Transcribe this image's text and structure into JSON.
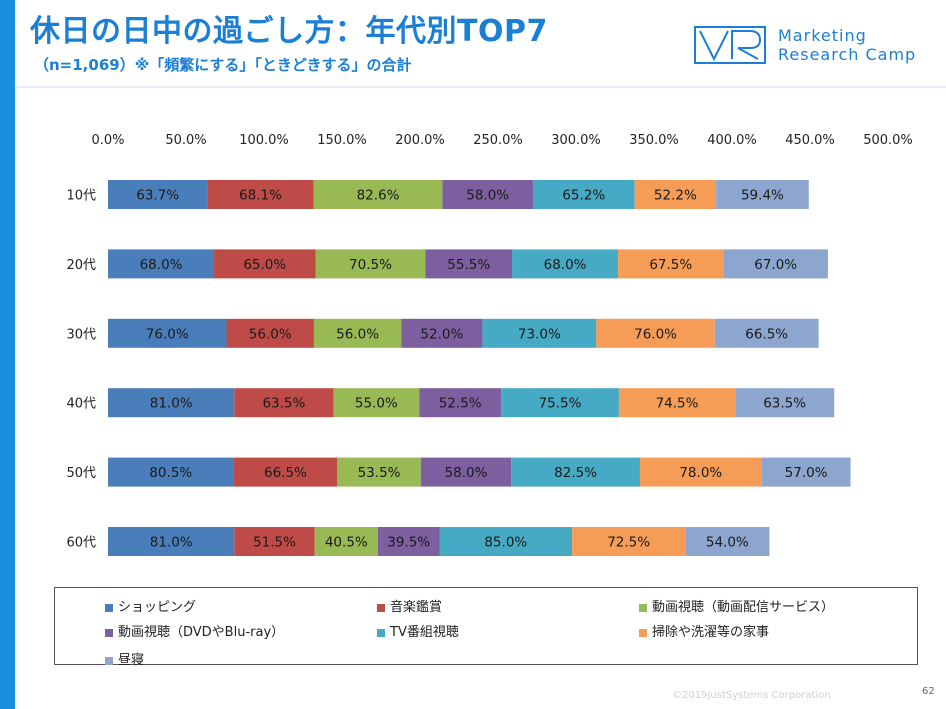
{
  "header": {
    "title": "休日の日中の過ごし方：年代別TOP7",
    "subtitle": "（n=1,069）※「頻繁にする」「ときどきする」の合計"
  },
  "logo": {
    "mark": "VR",
    "line1": "Marketing",
    "line2": "Research Camp"
  },
  "footer": {
    "copyright": "©2019JustSystems Corporation",
    "page": "62"
  },
  "colors": {
    "accent": "#1b7fd6",
    "series": [
      "#4a7ebb",
      "#be4b48",
      "#98b954",
      "#7d5fa0",
      "#46aac5",
      "#f59d56",
      "#8da6cf"
    ]
  },
  "chart_data": {
    "type": "bar",
    "orientation": "horizontal",
    "stacked": true,
    "categories": [
      "10代",
      "20代",
      "30代",
      "40代",
      "50代",
      "60代"
    ],
    "xlim": [
      0,
      500
    ],
    "xticks": [
      "0.0%",
      "50.0%",
      "100.0%",
      "150.0%",
      "200.0%",
      "250.0%",
      "300.0%",
      "350.0%",
      "400.0%",
      "450.0%",
      "500.0%"
    ],
    "grid": true,
    "legend_position": "bottom",
    "series": [
      {
        "name": "ショッピング",
        "values": [
          63.7,
          68.0,
          76.0,
          81.0,
          80.5,
          81.0
        ],
        "labels": [
          "63.7%",
          "68.0%",
          "76.0%",
          "81.0%",
          "80.5%",
          "81.0%"
        ]
      },
      {
        "name": "音楽鑑賞",
        "values": [
          68.1,
          65.0,
          56.0,
          63.5,
          66.5,
          51.5
        ],
        "labels": [
          "68.1%",
          "65.0%",
          "56.0%",
          "63.5%",
          "66.5%",
          "51.5%"
        ]
      },
      {
        "name": "動画視聴（動画配信サービス）",
        "values": [
          82.6,
          70.5,
          56.0,
          55.0,
          53.5,
          40.5
        ],
        "labels": [
          "82.6%",
          "70.5%",
          "56.0%",
          "55.0%",
          "53.5%",
          "40.5%"
        ]
      },
      {
        "name": "動画視聴（DVDやBlu-ray）",
        "values": [
          58.0,
          55.5,
          52.0,
          52.5,
          58.0,
          39.5
        ],
        "labels": [
          "58.0%",
          "55.5%",
          "52.0%",
          "52.5%",
          "58.0%",
          "39.5%"
        ]
      },
      {
        "name": "TV番組視聴",
        "values": [
          65.2,
          68.0,
          73.0,
          75.5,
          82.5,
          85.0
        ],
        "labels": [
          "65.2%",
          "68.0%",
          "73.0%",
          "75.5%",
          "82.5%",
          "85.0%"
        ]
      },
      {
        "name": "掃除や洗濯等の家事",
        "values": [
          52.2,
          67.5,
          76.0,
          74.5,
          78.0,
          72.5
        ],
        "labels": [
          "52.2%",
          "67.5%",
          "76.0%",
          "74.5%",
          "78.0%",
          "72.5%"
        ]
      },
      {
        "name": "昼寝",
        "values": [
          59.4,
          67.0,
          66.5,
          63.5,
          57.0,
          54.0
        ],
        "labels": [
          "59.4%",
          "67.0%",
          "66.5%",
          "63.5%",
          "57.0%",
          "54.0%"
        ]
      }
    ]
  }
}
